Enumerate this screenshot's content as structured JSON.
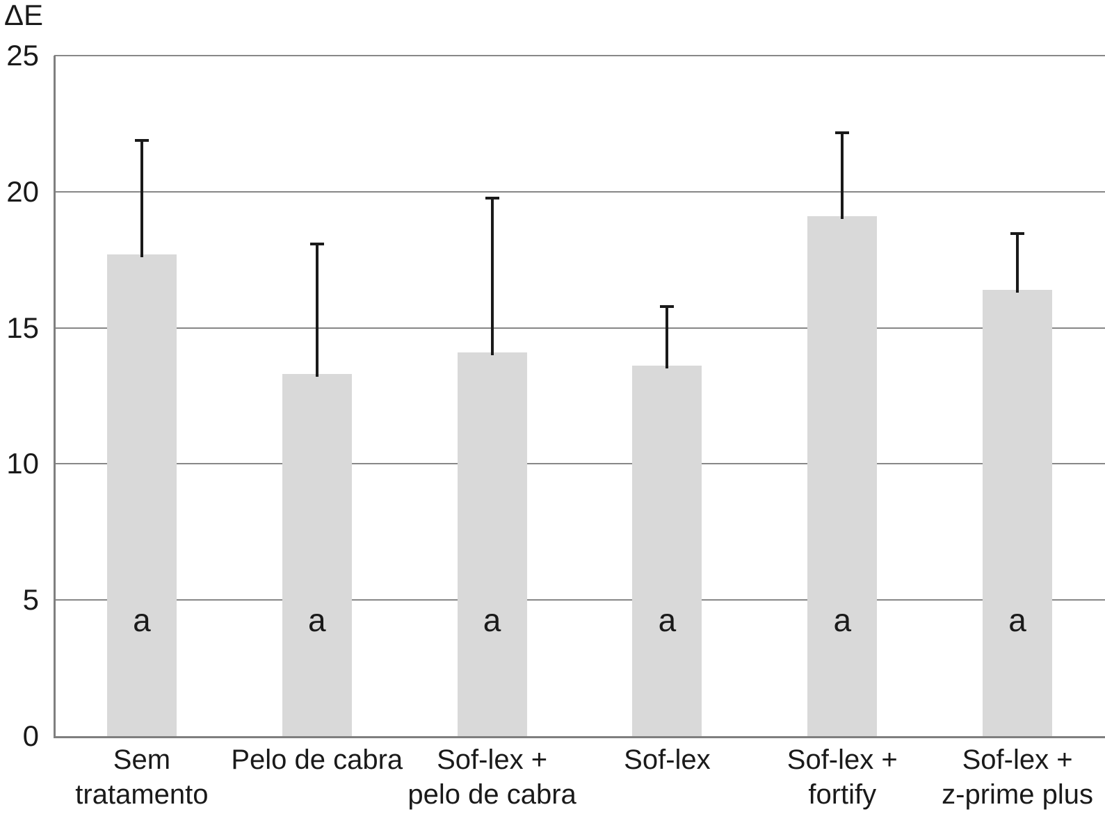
{
  "chart_data": {
    "type": "bar",
    "title": "",
    "y_axis_label": "ΔE",
    "xlabel": "",
    "ylabel": "ΔE",
    "ylim": [
      0,
      25
    ],
    "ytick_interval": 5,
    "yticks": [
      0,
      5,
      10,
      15,
      20,
      25
    ],
    "grid": true,
    "legend": false,
    "categories": [
      "Sem\ntratamento",
      "Pelo de cabra",
      "Sof-lex +\npelo de cabra",
      "Sof-lex",
      "Sof-lex +\nfortify",
      "Sof-lex +\nz-prime plus"
    ],
    "values": [
      17.7,
      13.3,
      14.1,
      13.6,
      19.1,
      16.4
    ],
    "error_bar_tops": [
      21.9,
      18.1,
      19.8,
      15.8,
      22.2,
      18.5
    ],
    "bar_labels": [
      "a",
      "a",
      "a",
      "a",
      "a",
      "a"
    ],
    "colors": {
      "bar_fill": "#d9d9d9",
      "error_bar": "#1a1a1a",
      "gridline": "#878787",
      "axis": "#7f7f7f",
      "text": "#1a1a1a",
      "background": "#ffffff"
    }
  }
}
